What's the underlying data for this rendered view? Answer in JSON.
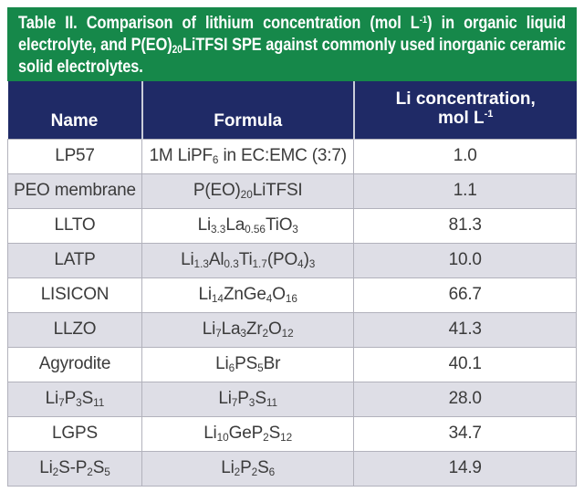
{
  "caption": {
    "segments": [
      {
        "t": "Table II. Comparison of lithium concentration (mol L"
      },
      {
        "sup": "-1"
      },
      {
        "t": ") in organic liquid electrolyte, and P(EO)"
      },
      {
        "sub": "20"
      },
      {
        "t": "LiTFSI SPE against commonly used inorganic ceramic solid electrolytes."
      }
    ]
  },
  "table": {
    "columns": [
      {
        "key": "name",
        "segments": [
          {
            "t": "Name"
          }
        ]
      },
      {
        "key": "formula",
        "segments": [
          {
            "t": "Formula"
          }
        ]
      },
      {
        "key": "li-concentration",
        "segments": [
          {
            "t": "Li concentration,"
          },
          {
            "br": true
          },
          {
            "t": "mol L"
          },
          {
            "sup": "-1"
          }
        ]
      }
    ],
    "rows": [
      {
        "name": [
          {
            "t": "LP57"
          }
        ],
        "formula": [
          {
            "t": "1M LiPF"
          },
          {
            "sub": "6"
          },
          {
            "t": " in EC:EMC (3:7)"
          }
        ],
        "value": "1.0"
      },
      {
        "name": [
          {
            "t": "PEO membrane"
          }
        ],
        "formula": [
          {
            "t": "P(EO)"
          },
          {
            "sub": "20"
          },
          {
            "t": "LiTFSI"
          }
        ],
        "value": "1.1"
      },
      {
        "name": [
          {
            "t": "LLTO"
          }
        ],
        "formula": [
          {
            "t": "Li"
          },
          {
            "sub": "3.3"
          },
          {
            "t": "La"
          },
          {
            "sub": "0.56"
          },
          {
            "t": "TiO"
          },
          {
            "sub": "3"
          }
        ],
        "value": "81.3"
      },
      {
        "name": [
          {
            "t": "LATP"
          }
        ],
        "formula": [
          {
            "t": "Li"
          },
          {
            "sub": "1.3"
          },
          {
            "t": "Al"
          },
          {
            "sub": "0.3"
          },
          {
            "t": "Ti"
          },
          {
            "sub": "1.7"
          },
          {
            "t": "(PO"
          },
          {
            "sub": "4"
          },
          {
            "t": ")"
          },
          {
            "sub": "3"
          }
        ],
        "value": "10.0"
      },
      {
        "name": [
          {
            "t": "LISICON"
          }
        ],
        "formula": [
          {
            "t": "Li"
          },
          {
            "sub": "14"
          },
          {
            "t": "ZnGe"
          },
          {
            "sub": "4"
          },
          {
            "t": "O"
          },
          {
            "sub": "16"
          }
        ],
        "value": "66.7"
      },
      {
        "name": [
          {
            "t": "LLZO"
          }
        ],
        "formula": [
          {
            "t": "Li"
          },
          {
            "sub": "7"
          },
          {
            "t": "La"
          },
          {
            "sub": "3"
          },
          {
            "t": "Zr"
          },
          {
            "sub": "2"
          },
          {
            "t": "O"
          },
          {
            "sub": "12"
          }
        ],
        "value": "41.3"
      },
      {
        "name": [
          {
            "t": "Agyrodite"
          }
        ],
        "formula": [
          {
            "t": "Li"
          },
          {
            "sub": "6"
          },
          {
            "t": "PS"
          },
          {
            "sub": "5"
          },
          {
            "t": "Br"
          }
        ],
        "value": "40.1"
      },
      {
        "name": [
          {
            "t": "Li"
          },
          {
            "sub": "7"
          },
          {
            "t": "P"
          },
          {
            "sub": "3"
          },
          {
            "t": "S"
          },
          {
            "sub": "11"
          }
        ],
        "formula": [
          {
            "t": "Li"
          },
          {
            "sub": "7"
          },
          {
            "t": "P"
          },
          {
            "sub": "3"
          },
          {
            "t": "S"
          },
          {
            "sub": "11"
          }
        ],
        "value": "28.0"
      },
      {
        "name": [
          {
            "t": "LGPS"
          }
        ],
        "formula": [
          {
            "t": "Li"
          },
          {
            "sub": "10"
          },
          {
            "t": "GeP"
          },
          {
            "sub": "2"
          },
          {
            "t": "S"
          },
          {
            "sub": "12"
          }
        ],
        "value": "34.7"
      },
      {
        "name": [
          {
            "t": "Li"
          },
          {
            "sub": "2"
          },
          {
            "t": "S-P"
          },
          {
            "sub": "2"
          },
          {
            "t": "S"
          },
          {
            "sub": "5"
          }
        ],
        "formula": [
          {
            "t": "Li"
          },
          {
            "sub": "2"
          },
          {
            "t": "P"
          },
          {
            "sub": "2"
          },
          {
            "t": "S"
          },
          {
            "sub": "6"
          }
        ],
        "value": "14.9"
      }
    ]
  },
  "chart_data": {
    "type": "table",
    "title": "Table II. Comparison of lithium concentration (mol L-1) in organic liquid electrolyte, and P(EO)20LiTFSI SPE against commonly used inorganic ceramic solid electrolytes.",
    "columns": [
      "Name",
      "Formula",
      "Li concentration, mol L-1"
    ],
    "rows": [
      [
        "LP57",
        "1M LiPF6 in EC:EMC (3:7)",
        1.0
      ],
      [
        "PEO membrane",
        "P(EO)20LiTFSI",
        1.1
      ],
      [
        "LLTO",
        "Li3.3La0.56TiO3",
        81.3
      ],
      [
        "LATP",
        "Li1.3Al0.3Ti1.7(PO4)3",
        10.0
      ],
      [
        "LISICON",
        "Li14ZnGe4O16",
        66.7
      ],
      [
        "LLZO",
        "Li7La3Zr2O12",
        41.3
      ],
      [
        "Agyrodite",
        "Li6PS5Br",
        40.1
      ],
      [
        "Li7P3S11",
        "Li7P3S11",
        28.0
      ],
      [
        "LGPS",
        "Li10GeP2S12",
        34.7
      ],
      [
        "Li2S-P2S5",
        "Li2P2S6",
        14.9
      ]
    ]
  },
  "colors": {
    "caption_bg": "#16884A",
    "header_bg": "#1F2A66",
    "row_bg": "#FFFFFF",
    "row_alt_bg": "#DEDEE6",
    "grid_border": "#B2B2BC",
    "header_divider": "#C9CDD9",
    "body_text": "#3B3B3B",
    "header_text": "#FFFFFF"
  }
}
